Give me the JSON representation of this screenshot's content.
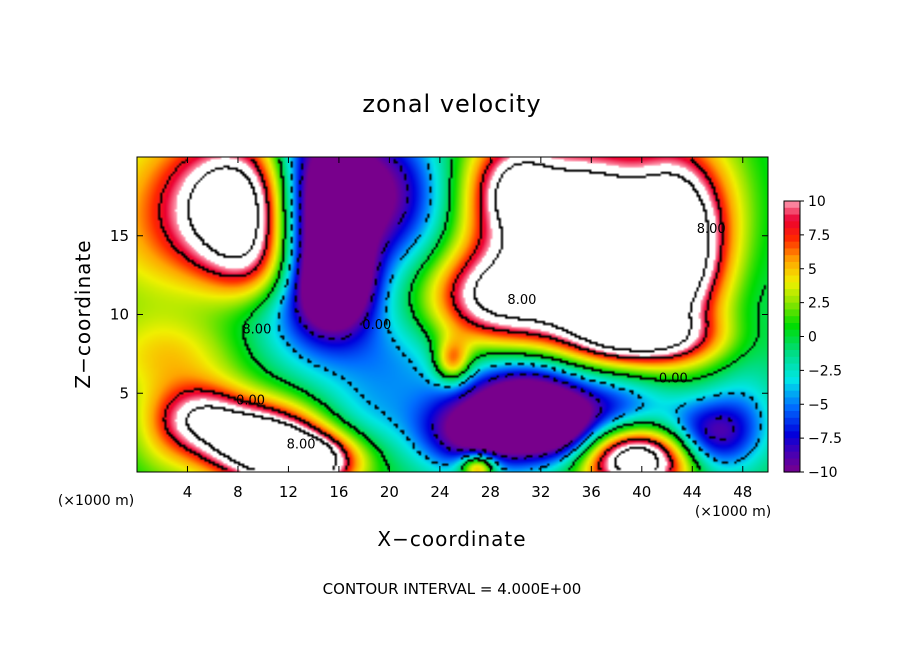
{
  "chart_data": {
    "type": "heatmap",
    "title": "zonal velocity",
    "xlabel": "X−coordinate",
    "ylabel": "Z−coordinate",
    "x_unit": "(×1000 m)",
    "y_unit": "(×1000 m)",
    "xlim": [
      0,
      50
    ],
    "ylim": [
      0,
      20
    ],
    "x_ticks": [
      4,
      8,
      12,
      16,
      20,
      24,
      28,
      32,
      36,
      40,
      44,
      48
    ],
    "y_ticks": [
      5,
      10,
      15
    ],
    "colorbar": {
      "min": -10,
      "max": 10,
      "ticks": [
        10,
        7.5,
        5,
        2.5,
        0,
        -2.5,
        -5,
        -7.5,
        -10
      ],
      "tick_labels": [
        "10",
        "7.5",
        "5",
        "2.5",
        "0",
        "−2.5",
        "−5",
        "−7.5",
        "−10"
      ]
    },
    "contour_labels": [
      {
        "text": "8.00",
        "x": 45.5,
        "z": 15.5
      },
      {
        "text": "8.00",
        "x": 30.5,
        "z": 11.0
      },
      {
        "text": "8.00",
        "x": 9.5,
        "z": 9.1
      },
      {
        "text": "0.00",
        "x": 19.0,
        "z": 9.4
      },
      {
        "text": "0.00",
        "x": 42.5,
        "z": 6.0
      },
      {
        "text": "0.00",
        "x": 9.0,
        "z": 4.6
      },
      {
        "text": "8.00",
        "x": 13.0,
        "z": 1.8
      }
    ],
    "velocity_features": [
      {
        "x": 9,
        "z": 17,
        "sx": 4.0,
        "sz": 3.0,
        "amp": 16
      },
      {
        "x": 10,
        "z": 13,
        "sx": 3.0,
        "sz": 2.0,
        "amp": 6
      },
      {
        "x": 2,
        "z": 15,
        "sx": 5.0,
        "sz": 6.0,
        "amp": 5
      },
      {
        "x": 7,
        "z": 10,
        "sx": 7.0,
        "sz": 2.5,
        "amp": -3
      },
      {
        "x": 14,
        "z": 16,
        "sx": 3.0,
        "sz": 4.5,
        "amp": -16
      },
      {
        "x": 16,
        "z": 12,
        "sx": 2.0,
        "sz": 2.0,
        "amp": -10
      },
      {
        "x": 18,
        "z": 18,
        "sx": 4.0,
        "sz": 3.0,
        "amp": -8
      },
      {
        "x": 22,
        "z": 16,
        "sx": 3.0,
        "sz": 4.0,
        "amp": -3
      },
      {
        "x": 27,
        "z": 16,
        "sx": 3.0,
        "sz": 4.0,
        "amp": 3
      },
      {
        "x": 30,
        "z": 18,
        "sx": 2.5,
        "sz": 2.5,
        "amp": 9
      },
      {
        "x": 29,
        "z": 11,
        "sx": 4.5,
        "sz": 2.2,
        "amp": 12
      },
      {
        "x": 36,
        "z": 16,
        "sx": 4.0,
        "sz": 3.5,
        "amp": 16
      },
      {
        "x": 38,
        "z": 12,
        "sx": 3.5,
        "sz": 2.5,
        "amp": 14
      },
      {
        "x": 43,
        "z": 15,
        "sx": 2.5,
        "sz": 4.0,
        "amp": 14
      },
      {
        "x": 40,
        "z": 8.5,
        "sx": 4.0,
        "sz": 1.2,
        "amp": 10
      },
      {
        "x": 47,
        "z": 16,
        "sx": 2.0,
        "sz": 4.0,
        "amp": 2
      },
      {
        "x": 49,
        "z": 9,
        "sx": 2.0,
        "sz": 4.0,
        "amp": -1
      },
      {
        "x": 25,
        "z": 7,
        "sx": 1.0,
        "sz": 1.0,
        "amp": 8
      },
      {
        "x": 20,
        "z": 7,
        "sx": 4.0,
        "sz": 2.5,
        "amp": -4
      },
      {
        "x": 3,
        "z": 7.5,
        "sx": 4.0,
        "sz": 2.0,
        "amp": 4
      },
      {
        "x": 10,
        "z": 1.8,
        "sx": 3.5,
        "sz": 1.8,
        "amp": 16
      },
      {
        "x": 14,
        "z": 0.6,
        "sx": 2.5,
        "sz": 1.2,
        "amp": 12
      },
      {
        "x": 5,
        "z": 3.5,
        "sx": 2.5,
        "sz": 1.5,
        "amp": 8
      },
      {
        "x": 2,
        "z": 2,
        "sx": 2.0,
        "sz": 2.0,
        "amp": 2
      },
      {
        "x": 26,
        "z": 2.5,
        "sx": 3.0,
        "sz": 1.8,
        "amp": -9
      },
      {
        "x": 31,
        "z": 3.5,
        "sx": 3.0,
        "sz": 2.0,
        "amp": -14
      },
      {
        "x": 34,
        "z": 2.5,
        "sx": 2.0,
        "sz": 1.5,
        "amp": -6
      },
      {
        "x": 30,
        "z": 6,
        "sx": 4.0,
        "sz": 1.5,
        "amp": -3
      },
      {
        "x": 38,
        "z": 4,
        "sx": 3.0,
        "sz": 1.5,
        "amp": -6
      },
      {
        "x": 40,
        "z": 0.8,
        "sx": 3.5,
        "sz": 1.5,
        "amp": 16
      },
      {
        "x": 45,
        "z": 2,
        "sx": 2.5,
        "sz": 1.8,
        "amp": -10
      },
      {
        "x": 48,
        "z": 3.5,
        "sx": 2.0,
        "sz": 2.0,
        "amp": -3
      },
      {
        "x": 27,
        "z": 0.3,
        "sx": 1.0,
        "sz": 0.6,
        "amp": 10
      },
      {
        "x": 18,
        "z": 3.5,
        "sx": 3.0,
        "sz": 1.5,
        "amp": -2
      }
    ]
  },
  "footer": {
    "contour_interval": "CONTOUR INTERVAL = 4.000E+00"
  }
}
